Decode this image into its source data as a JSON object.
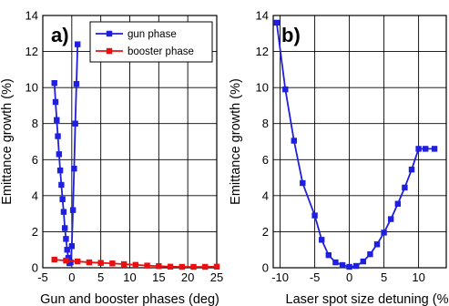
{
  "chart_data": [
    {
      "type": "line",
      "panel_label": "a)",
      "xlabel": "Gun and booster phases (deg)",
      "ylabel": "Emittance growth (%)",
      "xlim": [
        -5,
        25
      ],
      "ylim": [
        0,
        14
      ],
      "xticks": [
        -5,
        0,
        5,
        10,
        15,
        20,
        25
      ],
      "yticks": [
        0,
        2,
        4,
        6,
        8,
        10,
        12,
        14
      ],
      "grid": true,
      "legend_position": "top-right",
      "series": [
        {
          "name": "gun phase",
          "color": "#1f1fe0",
          "marker": "square",
          "x": [
            -3.0,
            -2.8,
            -2.6,
            -2.4,
            -2.2,
            -2.0,
            -1.8,
            -1.6,
            -1.4,
            -1.2,
            -1.0,
            -0.8,
            -0.6,
            -0.4,
            -0.2,
            0.0,
            0.2,
            0.4,
            0.6,
            0.8,
            1.0
          ],
          "y": [
            10.25,
            9.2,
            8.2,
            7.3,
            6.3,
            5.4,
            4.6,
            3.8,
            3.1,
            2.2,
            1.6,
            1.0,
            0.55,
            0.25,
            0.3,
            1.2,
            3.2,
            5.5,
            8.0,
            10.2,
            12.4
          ]
        },
        {
          "name": "booster phase",
          "color": "#e81010",
          "marker": "square",
          "x": [
            -3,
            -1,
            1,
            3,
            5,
            7,
            9,
            11,
            13,
            15,
            17,
            19,
            21,
            23,
            25
          ],
          "y": [
            0.45,
            0.4,
            0.35,
            0.3,
            0.27,
            0.24,
            0.2,
            0.16,
            0.12,
            0.09,
            0.06,
            0.05,
            0.05,
            0.05,
            0.06
          ]
        }
      ]
    },
    {
      "type": "line",
      "panel_label": "b)",
      "xlabel": "Laser spot size detuning (%",
      "ylabel": "Emittance growth (%)",
      "xlim": [
        -11,
        14
      ],
      "ylim": [
        0,
        14
      ],
      "xticks": [
        -10,
        -5,
        0,
        5,
        10
      ],
      "yticks": [
        0,
        2,
        4,
        6,
        8,
        10,
        12,
        14
      ],
      "grid": true,
      "series": [
        {
          "color": "#1f1fe0",
          "marker": "square",
          "x": [
            -10.5,
            -9.25,
            -8.0,
            -6.75,
            -5.0,
            -4.0,
            -3.0,
            -2.0,
            -1.0,
            0.0,
            1.0,
            2.0,
            3.0,
            4.0,
            5.0,
            6.0,
            7.0,
            8.0,
            9.0,
            10.0,
            11.0,
            12.3
          ],
          "y": [
            13.6,
            9.9,
            7.05,
            4.7,
            2.9,
            1.55,
            0.7,
            0.3,
            0.15,
            0.05,
            0.1,
            0.35,
            0.75,
            1.3,
            1.95,
            2.7,
            3.55,
            4.45,
            5.45,
            6.6,
            6.6,
            6.6
          ]
        }
      ]
    }
  ]
}
